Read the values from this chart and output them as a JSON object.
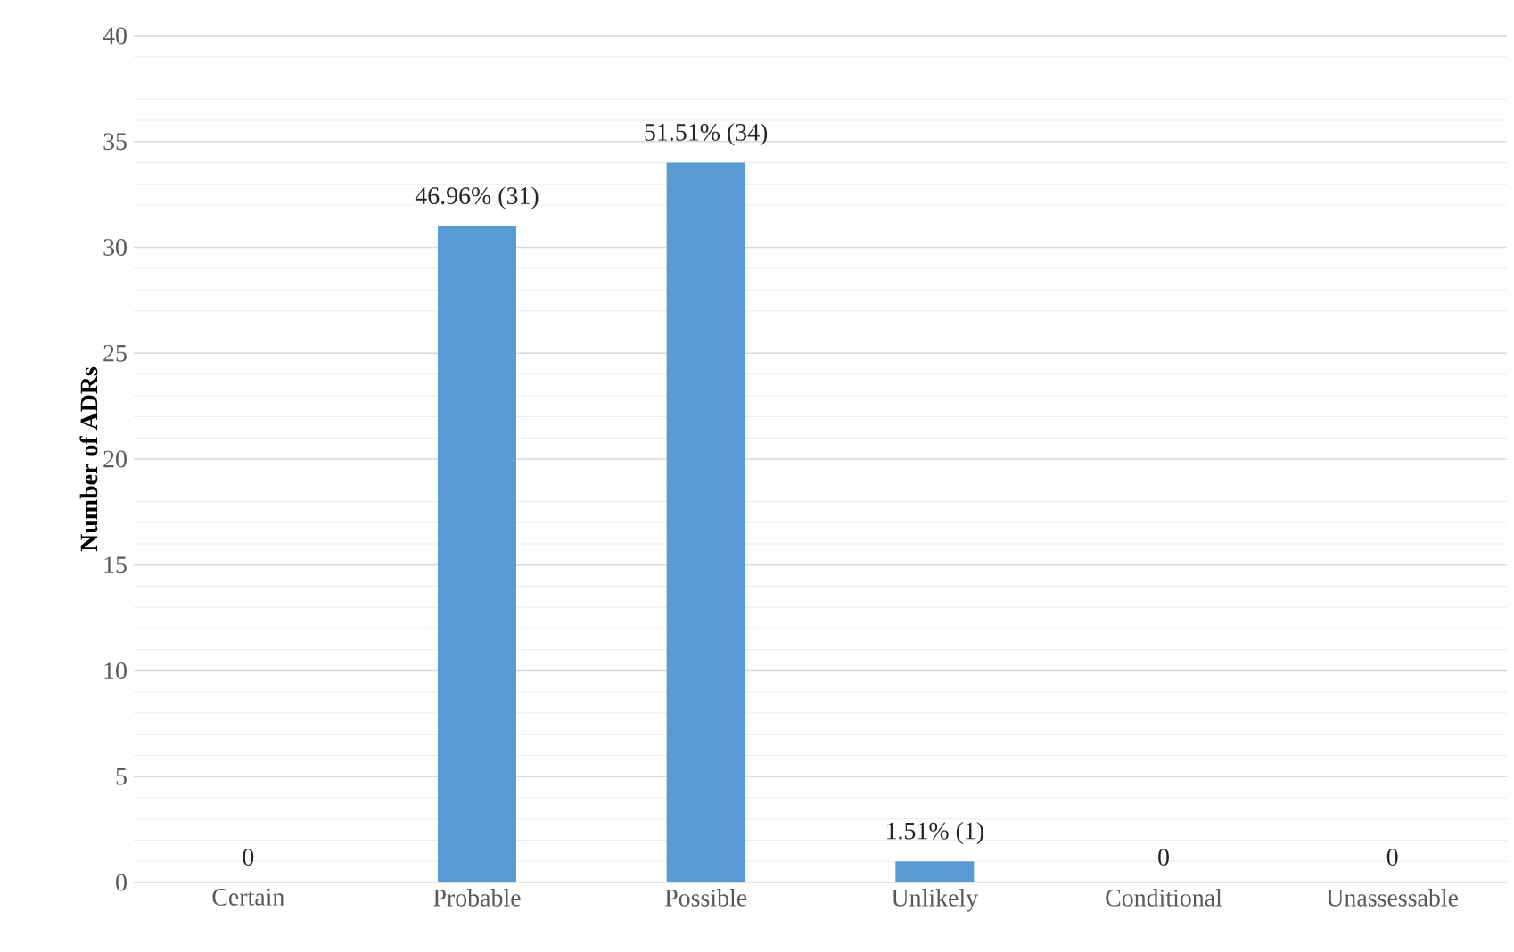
{
  "chart_data": {
    "type": "bar",
    "ylabel": "Number of ADRs",
    "categories": [
      "Certain",
      "Probable",
      "Possible",
      "Unlikely",
      "Conditional",
      "Unassessable"
    ],
    "values": [
      0,
      31,
      34,
      1,
      0,
      0
    ],
    "value_labels": [
      "0",
      "46.96% (31)",
      "51.51% (34)",
      "1.51% (1)",
      "0",
      "0"
    ],
    "color": "#5b9bd5",
    "ylim": [
      0,
      40
    ],
    "yticks": [
      0,
      5,
      10,
      15,
      20,
      25,
      30,
      35,
      40
    ],
    "grid": "y"
  }
}
